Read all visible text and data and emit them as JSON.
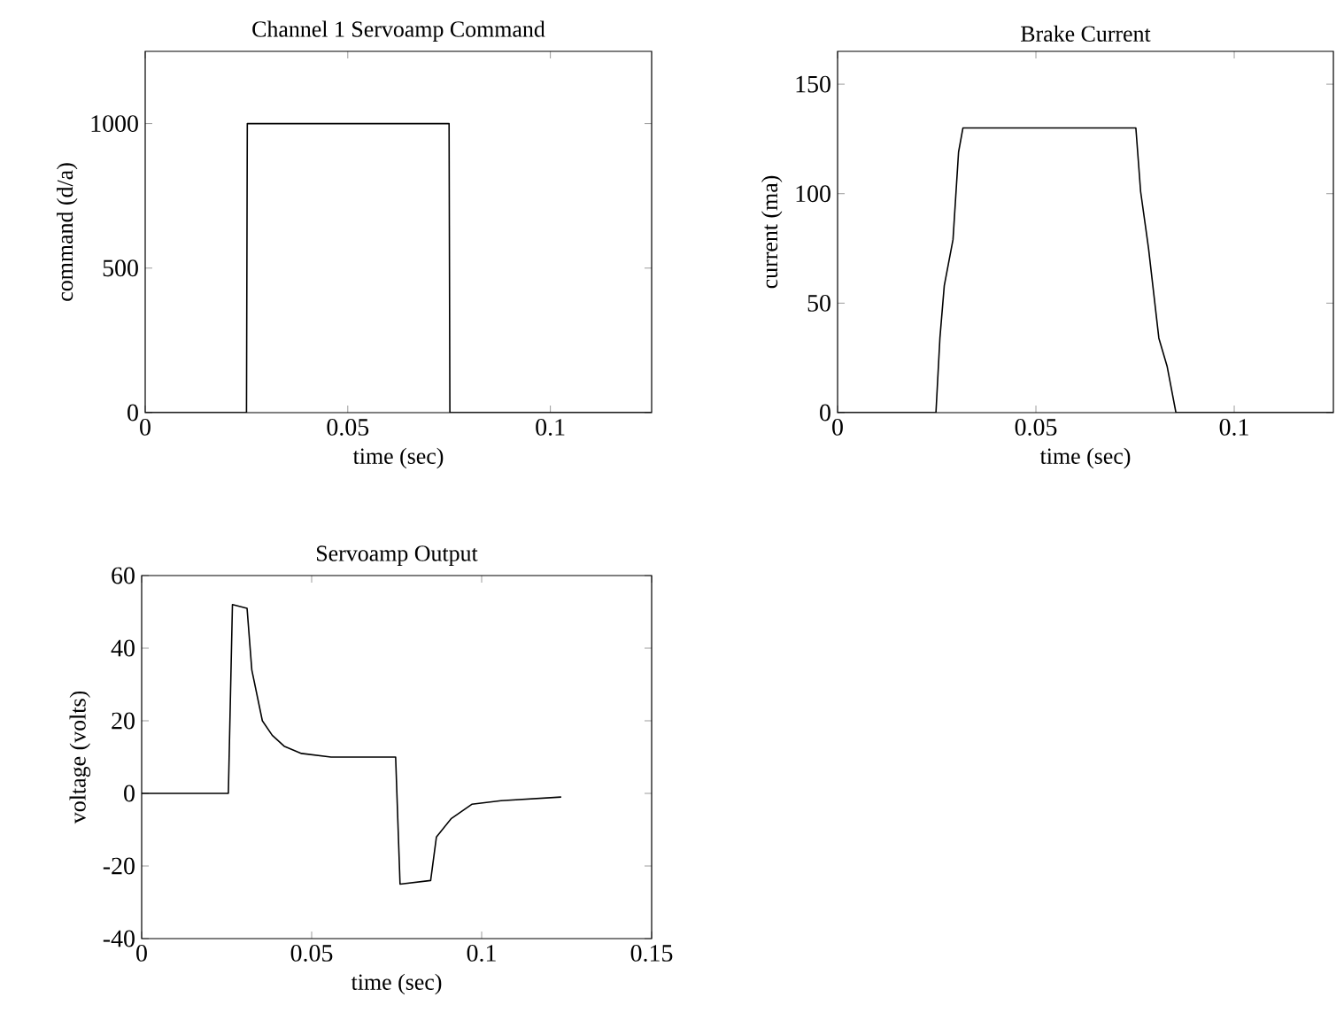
{
  "chart_data": [
    {
      "type": "line",
      "title": "Channel 1 Servoamp Command",
      "xlabel": "time (sec)",
      "ylabel": "command (d/a)",
      "color": "#000000",
      "x": [
        0,
        0.025,
        0.0252,
        0.075,
        0.0752,
        0.125
      ],
      "values": [
        0,
        0,
        1000,
        1000,
        0,
        0
      ],
      "xlim": [
        0,
        0.125
      ],
      "ylim": [
        0,
        1250
      ],
      "xticks": [
        0,
        0.05,
        0.1
      ],
      "yticks": [
        0,
        500,
        1000
      ]
    },
    {
      "type": "line",
      "title": "Brake Current",
      "xlabel": "time (sec)",
      "ylabel": "current (ma)",
      "color": "#000000",
      "x": [
        0,
        0.0248,
        0.0258,
        0.0269,
        0.0291,
        0.0305,
        0.0316,
        0.0752,
        0.0764,
        0.0784,
        0.081,
        0.0831,
        0.0853,
        0.125
      ],
      "values": [
        0,
        0,
        34,
        58,
        79,
        119,
        130,
        130,
        101,
        75,
        34,
        21,
        0,
        0
      ],
      "xlim": [
        0,
        0.125
      ],
      "ylim": [
        0,
        165
      ],
      "xticks": [
        0,
        0.05,
        0.1
      ],
      "yticks": [
        0,
        50,
        100,
        150
      ]
    },
    {
      "type": "line",
      "title": "Servoamp Output",
      "xlabel": "time (sec)",
      "ylabel": "voltage (volts)",
      "color": "#000000",
      "x": [
        0,
        0.0255,
        0.0267,
        0.031,
        0.0324,
        0.0355,
        0.0384,
        0.0419,
        0.047,
        0.0557,
        0.0747,
        0.076,
        0.085,
        0.0867,
        0.091,
        0.0971,
        0.1057,
        0.1234
      ],
      "values": [
        0,
        0,
        52,
        51,
        34,
        20,
        16,
        13,
        11,
        10,
        10,
        -25,
        -24,
        -12,
        -7,
        -3,
        -2,
        -1
      ],
      "xlim": [
        0,
        0.15
      ],
      "ylim": [
        -40,
        60
      ],
      "xticks": [
        0,
        0.05,
        0.1,
        0.15
      ],
      "yticks": [
        -40,
        -20,
        0,
        20,
        40,
        60
      ]
    }
  ]
}
